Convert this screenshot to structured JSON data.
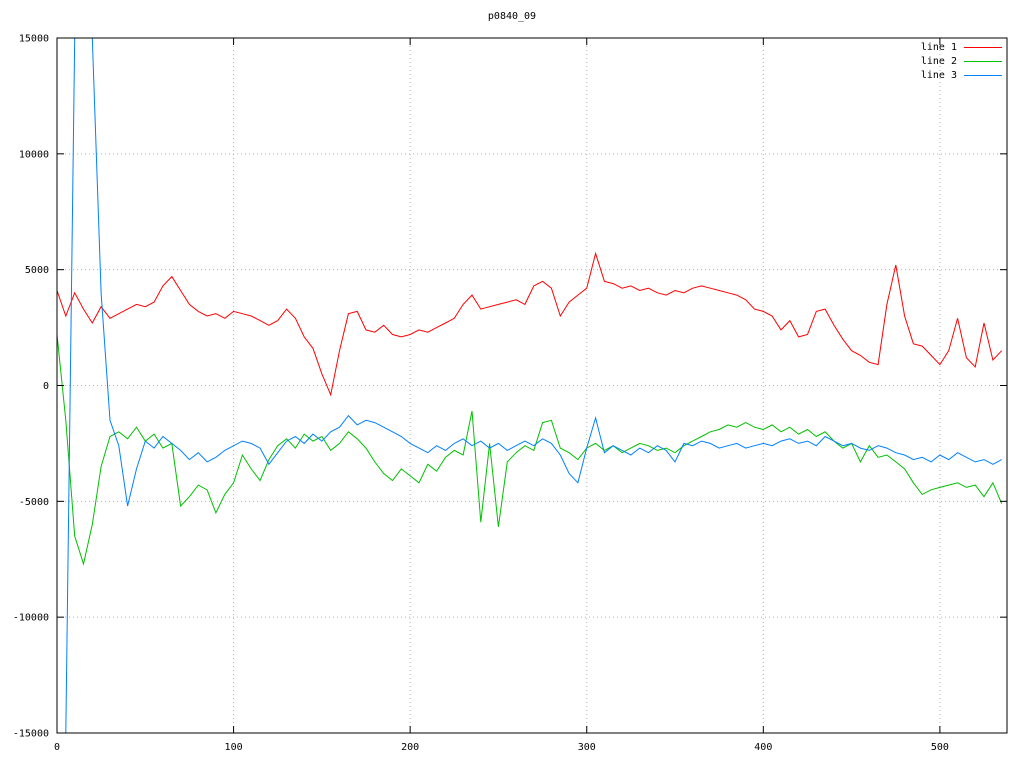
{
  "page": {
    "background": "#ffffff"
  },
  "chart_data": {
    "type": "line",
    "title": "p0840_09",
    "xlabel": "",
    "ylabel": "",
    "xlim": [
      0,
      538
    ],
    "ylim": [
      -15000,
      15000
    ],
    "x_ticks": [
      0,
      100,
      200,
      300,
      400,
      500
    ],
    "y_ticks": [
      -15000,
      -10000,
      -5000,
      0,
      5000,
      10000,
      15000
    ],
    "grid": true,
    "grid_style": "dotted",
    "grid_color": "#b3b3b3",
    "border_color": "#000000",
    "legend_position": "top-right",
    "x_start": 0,
    "x_step": 5,
    "series": [
      {
        "name": "line 1",
        "color": "#ff0000",
        "values": [
          4100,
          3000,
          4000,
          3300,
          2700,
          3400,
          2900,
          3100,
          3300,
          3500,
          3400,
          3600,
          4300,
          4700,
          4100,
          3500,
          3200,
          3000,
          3100,
          2900,
          3200,
          3100,
          3000,
          2800,
          2600,
          2800,
          3300,
          2900,
          2100,
          1600,
          500,
          -400,
          1500,
          3100,
          3200,
          2400,
          2300,
          2600,
          2200,
          2100,
          2200,
          2400,
          2300,
          2500,
          2700,
          2900,
          3500,
          3900,
          3300,
          3400,
          3500,
          3600,
          3700,
          3500,
          4300,
          4500,
          4200,
          3000,
          3600,
          3900,
          4200,
          5700,
          4500,
          4400,
          4200,
          4300,
          4100,
          4200,
          4000,
          3900,
          4100,
          4000,
          4200,
          4300,
          4200,
          4100,
          4000,
          3900,
          3700,
          3300,
          3200,
          3000,
          2400,
          2800,
          2100,
          2200,
          3200,
          3300,
          2600,
          2000,
          1500,
          1300,
          1000,
          900,
          3500,
          5200,
          3000,
          1800,
          1700,
          1300,
          900,
          1500,
          2900,
          1200,
          800,
          2700,
          1100,
          1500
        ]
      },
      {
        "name": "line 2",
        "color": "#00c000",
        "values": [
          2200,
          -1500,
          -6500,
          -7700,
          -6000,
          -3500,
          -2200,
          -2000,
          -2300,
          -1800,
          -2400,
          -2100,
          -2700,
          -2500,
          -5200,
          -4800,
          -4300,
          -4500,
          -5500,
          -4700,
          -4200,
          -3000,
          -3600,
          -4100,
          -3200,
          -2600,
          -2300,
          -2700,
          -2100,
          -2400,
          -2200,
          -2800,
          -2500,
          -2000,
          -2300,
          -2700,
          -3300,
          -3800,
          -4100,
          -3600,
          -3900,
          -4200,
          -3400,
          -3700,
          -3100,
          -2800,
          -3000,
          -1100,
          -5900,
          -2500,
          -6100,
          -3300,
          -2900,
          -2600,
          -2800,
          -1600,
          -1500,
          -2700,
          -2900,
          -3200,
          -2700,
          -2500,
          -2800,
          -2600,
          -2900,
          -2700,
          -2500,
          -2600,
          -2800,
          -2700,
          -2900,
          -2600,
          -2400,
          -2200,
          -2000,
          -1900,
          -1700,
          -1800,
          -1600,
          -1800,
          -1900,
          -1700,
          -2000,
          -1800,
          -2100,
          -1900,
          -2200,
          -2000,
          -2400,
          -2700,
          -2500,
          -3300,
          -2600,
          -3100,
          -3000,
          -3300,
          -3600,
          -4200,
          -4700,
          -4500,
          -4400,
          -4300,
          -4200,
          -4400,
          -4300,
          -4800,
          -4200,
          -5100
        ]
      },
      {
        "name": "line 3",
        "color": "#0080ff",
        "values": [
          -15000,
          -15000,
          15000,
          15000,
          15000,
          4000,
          -1500,
          -2600,
          -5200,
          -3600,
          -2400,
          -2700,
          -2200,
          -2500,
          -2800,
          -3200,
          -2900,
          -3300,
          -3100,
          -2800,
          -2600,
          -2400,
          -2500,
          -2700,
          -3400,
          -2900,
          -2400,
          -2200,
          -2500,
          -2100,
          -2400,
          -2000,
          -1800,
          -1300,
          -1700,
          -1500,
          -1600,
          -1800,
          -2000,
          -2200,
          -2500,
          -2700,
          -2900,
          -2600,
          -2800,
          -2500,
          -2300,
          -2600,
          -2400,
          -2700,
          -2500,
          -2800,
          -2600,
          -2400,
          -2600,
          -2300,
          -2500,
          -3000,
          -3800,
          -4200,
          -2700,
          -1400,
          -2900,
          -2600,
          -2800,
          -3000,
          -2700,
          -2900,
          -2600,
          -2800,
          -3300,
          -2500,
          -2600,
          -2400,
          -2500,
          -2700,
          -2600,
          -2500,
          -2700,
          -2600,
          -2500,
          -2600,
          -2400,
          -2300,
          -2500,
          -2400,
          -2600,
          -2200,
          -2400,
          -2600,
          -2500,
          -2700,
          -2800,
          -2600,
          -2700,
          -2900,
          -3000,
          -3200,
          -3100,
          -3300,
          -3000,
          -3200,
          -2900,
          -3100,
          -3300,
          -3200,
          -3400,
          -3200
        ]
      }
    ]
  }
}
